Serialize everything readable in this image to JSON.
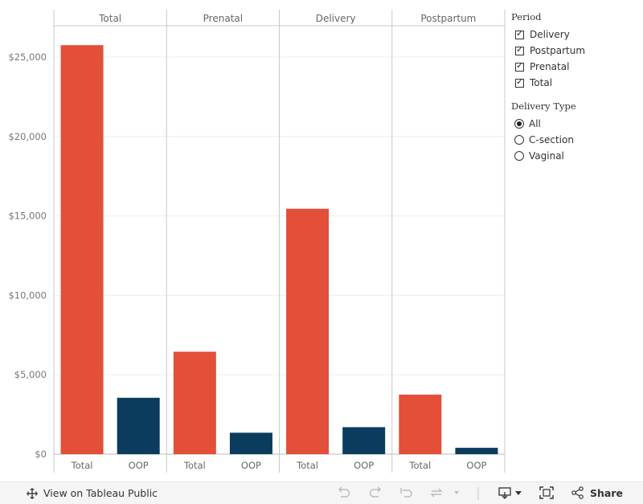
{
  "chart_data": {
    "type": "bar",
    "panels": [
      "Total",
      "Prenatal",
      "Delivery",
      "Postpartum"
    ],
    "categories": [
      "Total",
      "OOP"
    ],
    "series": [
      {
        "panel": "Total",
        "values": [
          25750,
          3550
        ]
      },
      {
        "panel": "Prenatal",
        "values": [
          6450,
          1350
        ]
      },
      {
        "panel": "Delivery",
        "values": [
          15450,
          1700
        ]
      },
      {
        "panel": "Postpartum",
        "values": [
          3750,
          400
        ]
      }
    ],
    "ylim": [
      0,
      27000
    ],
    "yticks": [
      0,
      5000,
      10000,
      15000,
      20000,
      25000
    ],
    "ytick_labels": [
      "$0",
      "$5,000",
      "$10,000",
      "$15,000",
      "$20,000",
      "$25,000"
    ],
    "colors": {
      "Total": "#e34f38",
      "OOP": "#0b3c5e"
    },
    "grid": true
  },
  "legend": {
    "period": {
      "title": "Period",
      "items": [
        "Delivery",
        "Postpartum",
        "Prenatal",
        "Total"
      ]
    },
    "delivery_type": {
      "title": "Delivery Type",
      "items": [
        "All",
        "C-section",
        "Vaginal"
      ],
      "selected": "All"
    }
  },
  "toolbar": {
    "view_label": "View on Tableau Public",
    "share_label": "Share"
  }
}
